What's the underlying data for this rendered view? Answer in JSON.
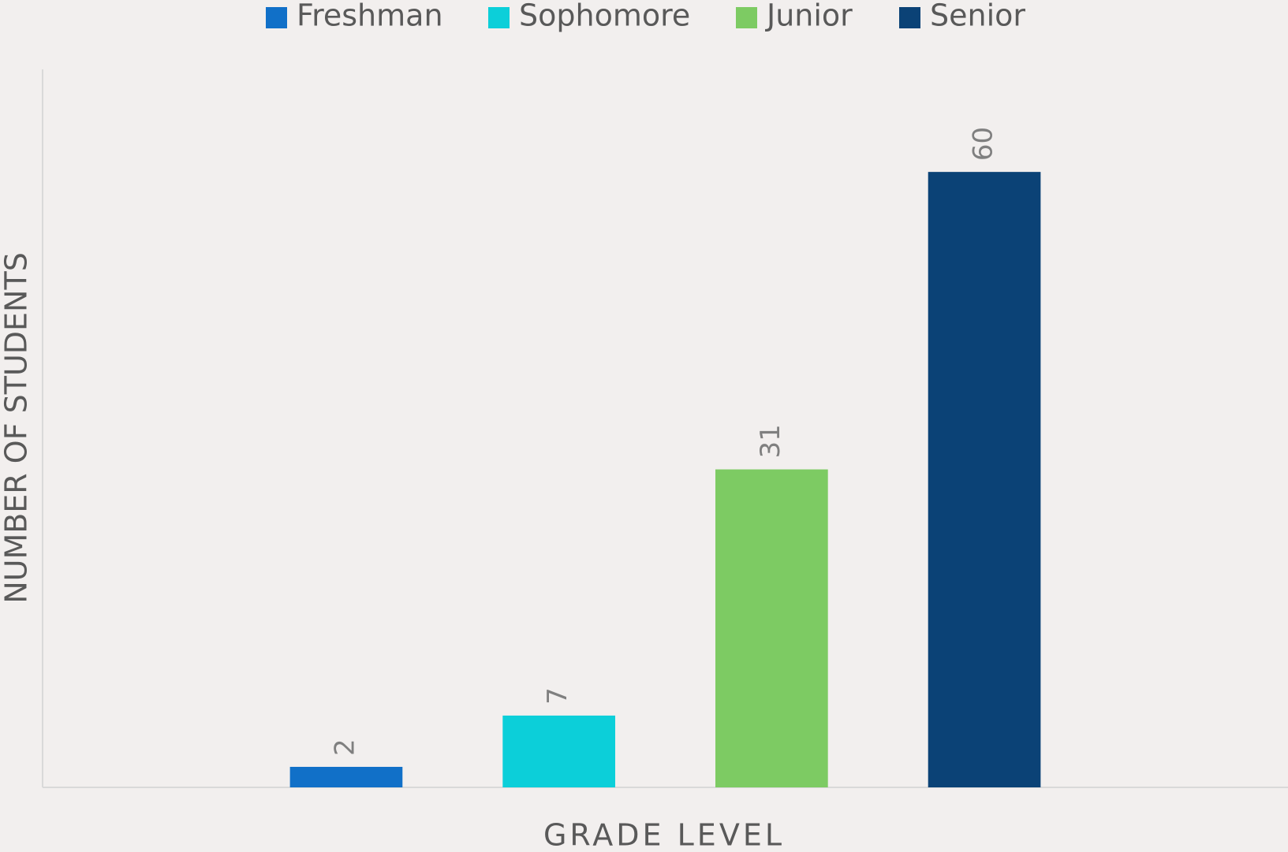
{
  "chart_data": {
    "type": "bar",
    "x_label": "GRADE LEVEL",
    "y_label": "NUMBER OF STUDENTS",
    "categories": [
      null
    ],
    "series": [
      {
        "name": "Freshman",
        "color": "#1170c8",
        "values": [
          2
        ]
      },
      {
        "name": "Sophomore",
        "color": "#0ccfd9",
        "values": [
          7
        ]
      },
      {
        "name": "Junior",
        "color": "#7dcb63",
        "values": [
          31
        ]
      },
      {
        "name": "Senior",
        "color": "#0b4276",
        "values": [
          60
        ]
      }
    ],
    "ylim": [
      0,
      70
    ],
    "legend": "top",
    "grid": false
  }
}
